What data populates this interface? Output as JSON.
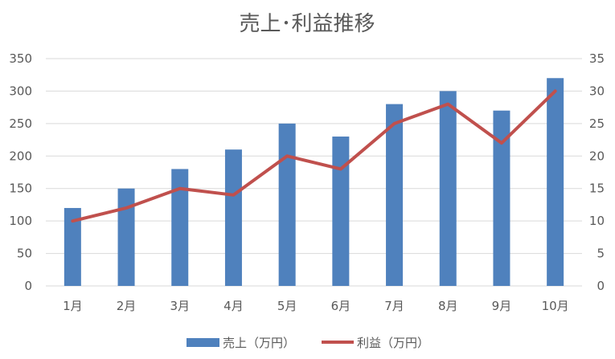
{
  "chart_data": {
    "type": "bar+line",
    "title": "売上･利益推移",
    "categories": [
      "1月",
      "2月",
      "3月",
      "4月",
      "5月",
      "6月",
      "7月",
      "8月",
      "9月",
      "10月"
    ],
    "series": [
      {
        "name": "売上（万円）",
        "type": "bar",
        "axis": "left",
        "color": "#4f81bd",
        "values": [
          120,
          150,
          180,
          210,
          250,
          230,
          280,
          300,
          270,
          320
        ]
      },
      {
        "name": "利益（万円）",
        "type": "line",
        "axis": "right",
        "color": "#c0504d",
        "values": [
          10,
          12,
          15,
          14,
          20,
          18,
          25,
          28,
          22,
          30
        ]
      }
    ],
    "y_left": {
      "min": 0,
      "max": 350,
      "ticks": [
        "0",
        "50",
        "100",
        "150",
        "200",
        "250",
        "300",
        "350"
      ]
    },
    "y_right": {
      "min": 0,
      "max": 35,
      "ticks": [
        "0",
        "5",
        "10",
        "15",
        "20",
        "25",
        "30",
        "35"
      ]
    },
    "grid": true,
    "legend_position": "bottom"
  }
}
